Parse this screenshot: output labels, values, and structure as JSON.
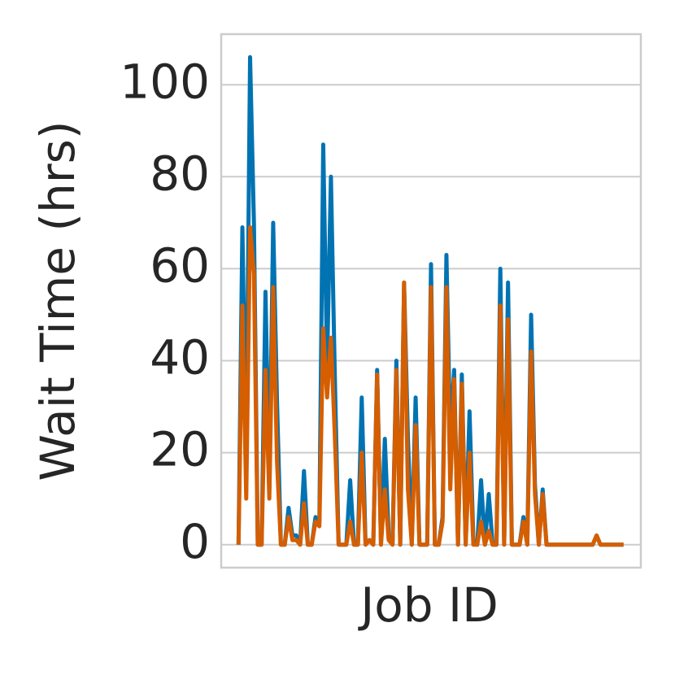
{
  "chart_data": {
    "type": "line",
    "x_label": "Job ID",
    "y_label": "Wait Time (hrs)",
    "x": [
      0,
      1,
      2,
      3,
      4,
      5,
      6,
      7,
      8,
      9,
      10,
      11,
      12,
      13,
      14,
      15,
      16,
      17,
      18,
      19,
      20,
      21,
      22,
      23,
      24,
      25,
      26,
      27,
      28,
      29,
      30,
      31,
      32,
      33,
      34,
      35,
      36,
      37,
      38,
      39,
      40,
      41,
      42,
      43,
      44,
      45,
      46,
      47,
      48,
      49,
      50,
      51,
      52,
      53,
      54,
      55,
      56,
      57,
      58,
      59,
      60,
      61,
      62,
      63,
      64,
      65,
      66,
      67,
      68,
      69,
      70,
      71,
      72,
      73,
      74,
      75,
      76,
      77,
      78,
      79,
      80,
      81,
      82,
      83,
      84,
      85,
      86,
      87,
      88,
      89,
      90,
      91,
      92,
      93,
      94,
      95,
      96,
      97,
      98,
      99,
      100
    ],
    "series": [
      {
        "color": "#0173b2",
        "values": [
          0,
          69,
          18,
          106,
          70,
          0,
          0,
          55,
          12,
          70,
          31,
          0,
          0,
          8,
          2,
          2,
          0,
          16,
          0,
          0,
          6,
          5,
          87,
          39,
          80,
          37,
          0,
          0,
          0,
          14,
          0,
          0,
          32,
          0,
          1,
          0,
          38,
          0,
          23,
          2,
          0,
          40,
          0,
          57,
          23,
          0,
          32,
          0,
          0,
          0,
          61,
          0,
          0,
          6,
          63,
          23,
          38,
          0,
          37,
          0,
          29,
          1,
          0,
          14,
          0,
          11,
          0,
          0,
          60,
          0,
          57,
          0,
          0,
          0,
          6,
          0,
          50,
          13,
          0,
          12,
          0,
          0,
          0,
          0,
          0,
          0,
          0,
          0,
          0,
          0,
          0,
          0,
          0,
          2,
          0,
          0,
          0,
          0,
          0,
          0,
          0
        ]
      },
      {
        "color": "#d55e00",
        "values": [
          0,
          52,
          10,
          69,
          59,
          0,
          0,
          38,
          10,
          56,
          18,
          0,
          0,
          6,
          1,
          1,
          0,
          9,
          0,
          0,
          5,
          4,
          47,
          32,
          45,
          24,
          0,
          0,
          0,
          5,
          0,
          0,
          20,
          0,
          1,
          0,
          37,
          0,
          12,
          1,
          0,
          38,
          0,
          57,
          12,
          0,
          26,
          0,
          0,
          0,
          56,
          0,
          0,
          5,
          56,
          12,
          36,
          0,
          35,
          0,
          20,
          0,
          0,
          5,
          0,
          3,
          0,
          0,
          52,
          0,
          49,
          0,
          0,
          0,
          5,
          0,
          42,
          11,
          0,
          11,
          0,
          0,
          0,
          0,
          0,
          0,
          0,
          0,
          0,
          0,
          0,
          0,
          0,
          2,
          0,
          0,
          0,
          0,
          0,
          0,
          0
        ]
      }
    ],
    "xlim": [
      -4.5,
      104.5
    ],
    "ylim": [
      -5,
      111
    ],
    "yticks": [
      0,
      20,
      40,
      60,
      80,
      100
    ],
    "grid": true
  }
}
